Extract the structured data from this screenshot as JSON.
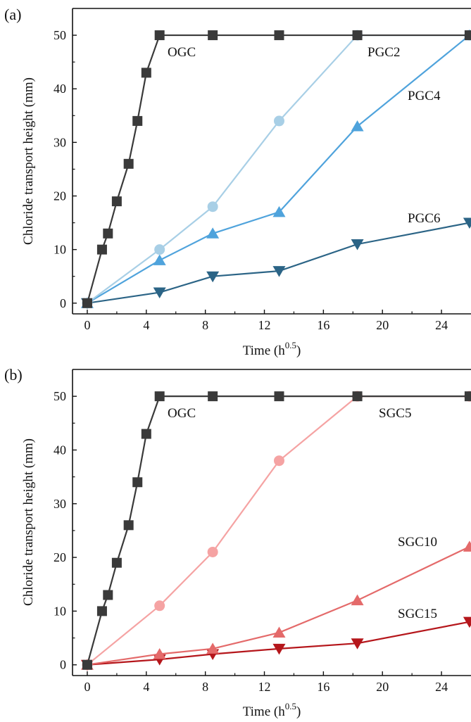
{
  "chart_data": [
    {
      "type": "line",
      "panel_label": "(a)",
      "xlabel": "Time (h",
      "xlabel_sup": "0.5",
      "xlabel_close": ")",
      "ylabel": "Chloride transport height (mm)",
      "xlim": [
        -1,
        26
      ],
      "ylim": [
        -2,
        55
      ],
      "xticks": [
        0,
        4,
        8,
        12,
        16,
        20,
        24
      ],
      "yticks": [
        0,
        10,
        20,
        30,
        40,
        50
      ],
      "grid": false,
      "series": [
        {
          "name": "OGC",
          "color": "#3a3a3a",
          "marker": "square",
          "x": [
            0,
            1,
            1.4,
            2,
            2.8,
            3.4,
            4,
            4.9,
            8.5,
            13,
            18.3,
            25.9
          ],
          "y": [
            0,
            10,
            13,
            19,
            26,
            34,
            43,
            50,
            50,
            50,
            50,
            50
          ]
        },
        {
          "name": "PGC2",
          "color": "#a8cfe6",
          "marker": "circle",
          "x": [
            0,
            4.9,
            8.5,
            13,
            18.3,
            25.9
          ],
          "y": [
            0,
            10,
            18,
            34,
            50,
            50
          ]
        },
        {
          "name": "PGC4",
          "color": "#4fa3dc",
          "marker": "triangle-up",
          "x": [
            0,
            4.9,
            8.5,
            13,
            18.3,
            25.9
          ],
          "y": [
            0,
            8,
            13,
            17,
            33,
            50
          ]
        },
        {
          "name": "PGC6",
          "color": "#2b6486",
          "marker": "triangle-down",
          "x": [
            0,
            4.9,
            8.5,
            13,
            18.3,
            25.9
          ],
          "y": [
            0,
            2,
            5,
            6,
            11,
            15
          ]
        }
      ]
    },
    {
      "type": "line",
      "panel_label": "(b)",
      "xlabel": "Time (h",
      "xlabel_sup": "0.5",
      "xlabel_close": ")",
      "ylabel": "Chloride transport height (mm)",
      "xlim": [
        -1,
        26
      ],
      "ylim": [
        -2,
        55
      ],
      "xticks": [
        0,
        4,
        8,
        12,
        16,
        20,
        24
      ],
      "yticks": [
        0,
        10,
        20,
        30,
        40,
        50
      ],
      "grid": false,
      "series": [
        {
          "name": "OGC",
          "color": "#3a3a3a",
          "marker": "square",
          "x": [
            0,
            1,
            1.4,
            2,
            2.8,
            3.4,
            4,
            4.9,
            8.5,
            13,
            18.3,
            25.9
          ],
          "y": [
            0,
            10,
            13,
            19,
            26,
            34,
            43,
            50,
            50,
            50,
            50,
            50
          ]
        },
        {
          "name": "SGC5",
          "color": "#f5a3a3",
          "marker": "circle",
          "x": [
            0,
            4.9,
            8.5,
            13,
            18.3,
            25.9
          ],
          "y": [
            0,
            11,
            21,
            38,
            50,
            50
          ]
        },
        {
          "name": "SGC10",
          "color": "#e46a6a",
          "marker": "triangle-up",
          "x": [
            0,
            4.9,
            8.5,
            13,
            18.3,
            25.9
          ],
          "y": [
            0,
            2,
            3,
            6,
            12,
            22
          ]
        },
        {
          "name": "SGC15",
          "color": "#b5161b",
          "marker": "triangle-down",
          "x": [
            0,
            4.9,
            8.5,
            13,
            18.3,
            25.9
          ],
          "y": [
            0,
            1,
            2,
            3,
            4,
            8
          ]
        }
      ]
    }
  ]
}
